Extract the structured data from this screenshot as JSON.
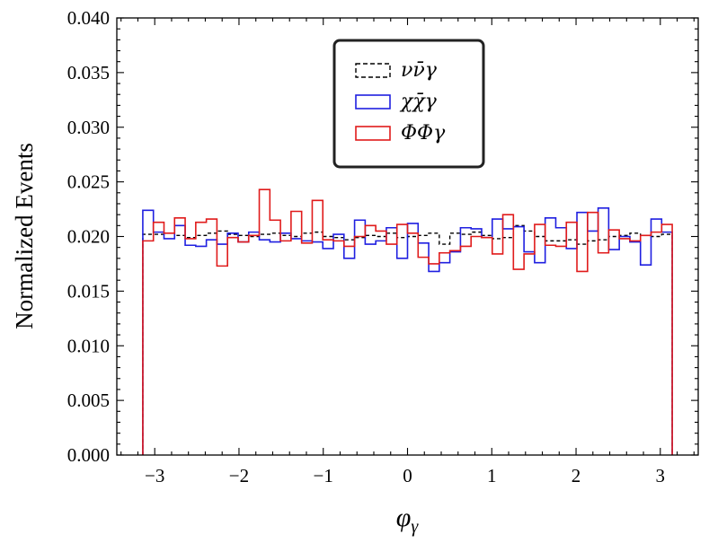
{
  "chart_data": {
    "type": "histogram-step",
    "title": "",
    "xlabel": "φ_γ",
    "xlabel_main": "φ",
    "xlabel_sub": "γ",
    "ylabel": "Normalized Events",
    "xlim": [
      -3.45,
      3.45
    ],
    "ylim": [
      0.0,
      0.04
    ],
    "x_ticks": [
      -3,
      -2,
      -1,
      0,
      1,
      2,
      3
    ],
    "x_tick_labels": [
      "−3",
      "−2",
      "−1",
      "0",
      "1",
      "2",
      "3"
    ],
    "y_ticks": [
      0.0,
      0.005,
      0.01,
      0.015,
      0.02,
      0.025,
      0.03,
      0.035,
      0.04
    ],
    "y_tick_labels": [
      "0.000",
      "0.005",
      "0.010",
      "0.015",
      "0.020",
      "0.025",
      "0.030",
      "0.035",
      "0.040"
    ],
    "bin_range": [
      -3.14159,
      3.14159
    ],
    "n_bins": 50,
    "legend": {
      "position": "upper-center",
      "entries": [
        "νν̄γ",
        "χχ̄γ",
        "ΦΦγ"
      ]
    },
    "series": [
      {
        "name": "νν̄γ",
        "color": "#000000",
        "style": "dashed",
        "values": [
          0.0202,
          0.0202,
          0.0203,
          0.0201,
          0.0199,
          0.0201,
          0.0203,
          0.0205,
          0.0202,
          0.0201,
          0.02,
          0.0202,
          0.0203,
          0.0201,
          0.02,
          0.0203,
          0.0204,
          0.02,
          0.0199,
          0.0197,
          0.0199,
          0.0201,
          0.02,
          0.0203,
          0.0199,
          0.02,
          0.0201,
          0.0203,
          0.0193,
          0.0203,
          0.0202,
          0.0204,
          0.0201,
          0.0198,
          0.0199,
          0.021,
          0.0205,
          0.02,
          0.0196,
          0.0196,
          0.0197,
          0.0193,
          0.0196,
          0.0197,
          0.02,
          0.0201,
          0.0203,
          0.0201,
          0.02,
          0.0202
        ]
      },
      {
        "name": "χχ̄γ",
        "color": "#1f1fe0",
        "style": "solid",
        "values": [
          0.0224,
          0.0204,
          0.0198,
          0.021,
          0.0192,
          0.0191,
          0.0197,
          0.0193,
          0.0203,
          0.0195,
          0.0204,
          0.0197,
          0.0195,
          0.0203,
          0.0198,
          0.0196,
          0.0195,
          0.0189,
          0.0202,
          0.018,
          0.0215,
          0.0193,
          0.0196,
          0.0208,
          0.018,
          0.0212,
          0.0194,
          0.0168,
          0.0176,
          0.0186,
          0.0208,
          0.0207,
          0.0199,
          0.0216,
          0.0207,
          0.0209,
          0.0186,
          0.0176,
          0.0217,
          0.0208,
          0.0189,
          0.0222,
          0.0205,
          0.0226,
          0.0188,
          0.02,
          0.0195,
          0.0174,
          0.0216,
          0.0204
        ]
      },
      {
        "name": "ΦΦγ",
        "color": "#e01b1b",
        "style": "solid",
        "values": [
          0.0196,
          0.0213,
          0.0203,
          0.0217,
          0.0198,
          0.0213,
          0.0216,
          0.0173,
          0.0199,
          0.0195,
          0.0201,
          0.0243,
          0.0215,
          0.0196,
          0.0223,
          0.0194,
          0.0233,
          0.0197,
          0.0196,
          0.0191,
          0.02,
          0.021,
          0.0205,
          0.0193,
          0.0211,
          0.0203,
          0.0181,
          0.0175,
          0.0185,
          0.0187,
          0.0191,
          0.02,
          0.0199,
          0.0184,
          0.022,
          0.017,
          0.0184,
          0.0211,
          0.0192,
          0.0191,
          0.0213,
          0.0168,
          0.0222,
          0.0185,
          0.0206,
          0.0198,
          0.0196,
          0.0201,
          0.0204,
          0.0211
        ]
      }
    ]
  }
}
